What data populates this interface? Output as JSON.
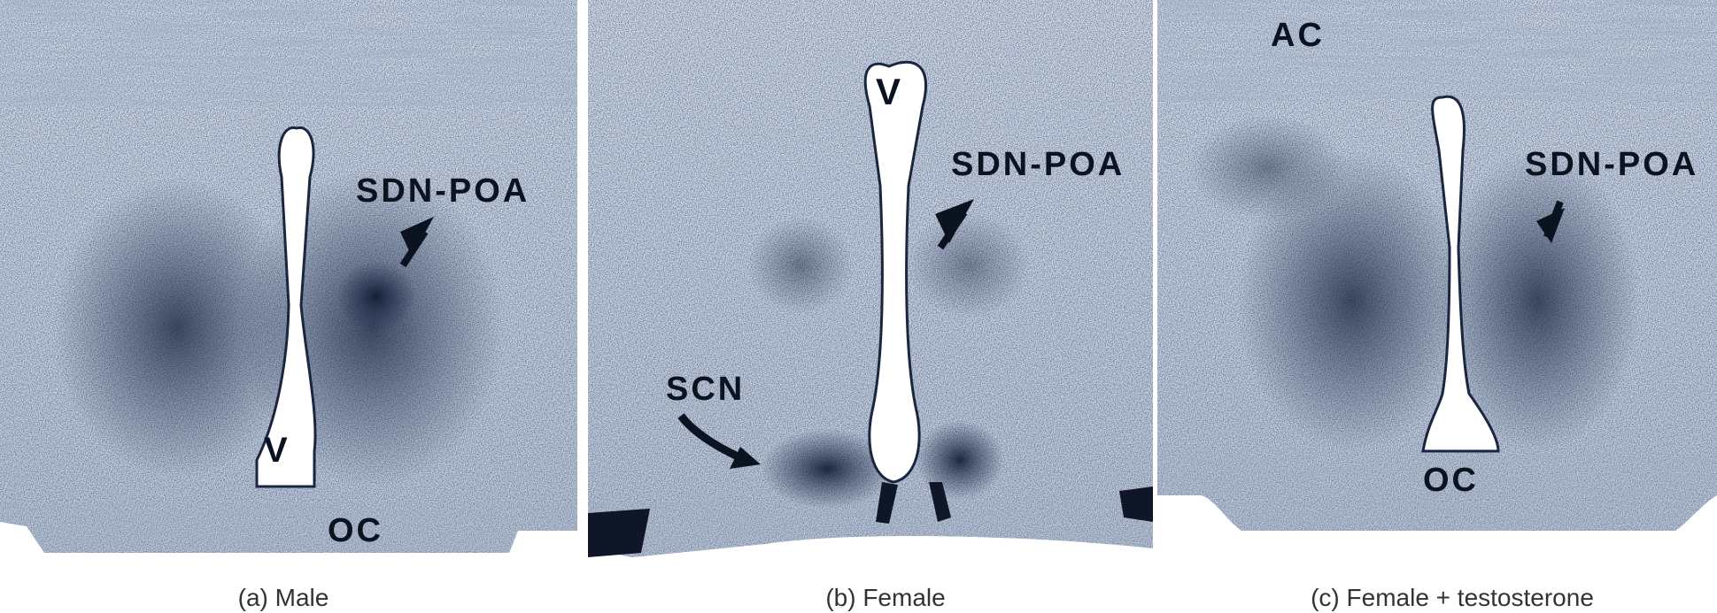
{
  "panels": [
    {
      "caption": "(a) Male",
      "labels": {
        "region": "SDN-POA",
        "ventricle": "V",
        "chiasm": "OC"
      }
    },
    {
      "caption": "(b) Female",
      "labels": {
        "ventricle": "V",
        "region": "SDN-POA",
        "nucleus": "SCN"
      }
    },
    {
      "caption": "(c) Female + testosterone",
      "labels": {
        "commissure": "AC",
        "region": "SDN-POA",
        "chiasm": "OC"
      }
    }
  ],
  "colors": {
    "tissue_base": "#c9d3de",
    "stain_dark": "#1d2c4a",
    "ventricle": "#ffffff"
  }
}
